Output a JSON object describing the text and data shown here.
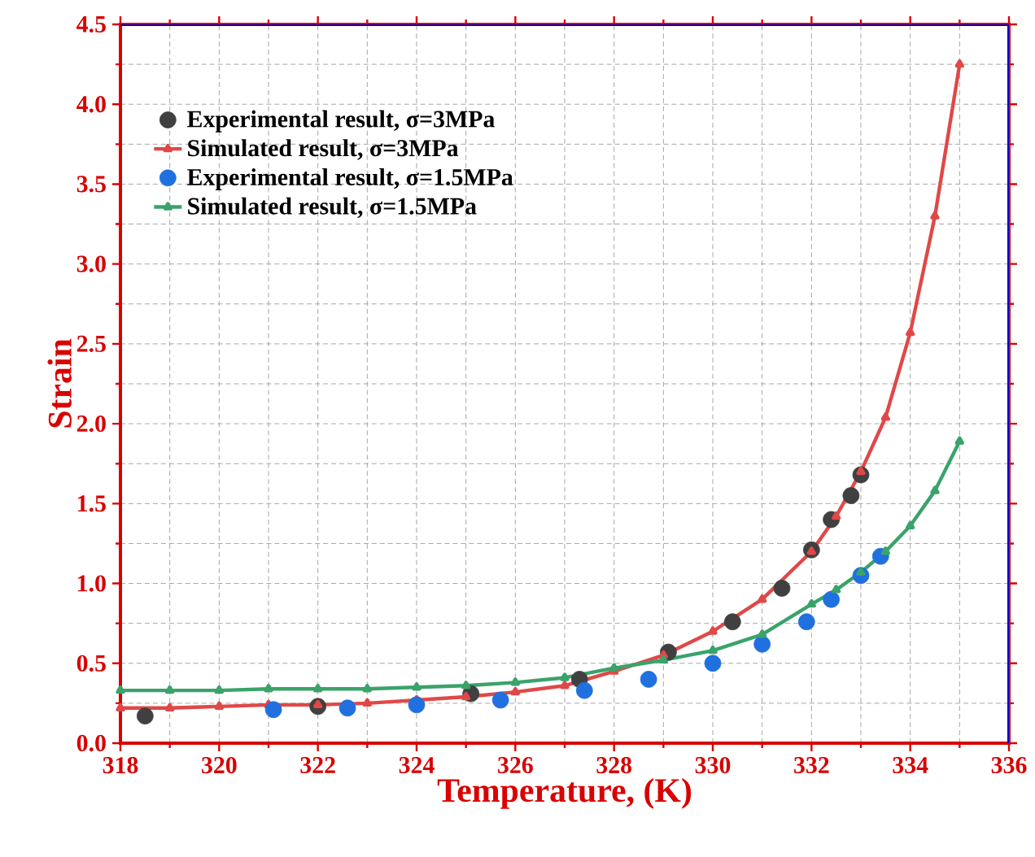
{
  "chart_data": {
    "type": "scatter",
    "xlabel": "Temperature, (K)",
    "ylabel": "Strain",
    "xlim": [
      318,
      336
    ],
    "ylim": [
      0,
      4.5
    ],
    "xticks": [
      318,
      320,
      322,
      324,
      326,
      328,
      330,
      332,
      334,
      336
    ],
    "yticks": [
      {
        "value": 0,
        "label": "0.0"
      },
      {
        "value": 0.5,
        "label": "0.5"
      },
      {
        "value": 1,
        "label": "1.0"
      },
      {
        "value": 1.5,
        "label": "1.5"
      },
      {
        "value": 2,
        "label": "2.0"
      },
      {
        "value": 2.5,
        "label": "2.5"
      },
      {
        "value": 3,
        "label": "3.0"
      },
      {
        "value": 3.5,
        "label": "3.5"
      },
      {
        "value": 4,
        "label": "4.0"
      },
      {
        "value": 4.5,
        "label": "4.5"
      }
    ],
    "grid": true,
    "legend": "top left",
    "series": [
      {
        "name": "Experimental result, σ=3MPa",
        "marker": "circle",
        "color": "#404040",
        "x": [
          318.5,
          322.0,
          325.1,
          327.3,
          329.1,
          330.4,
          331.4,
          332.0,
          332.4,
          332.8,
          333.0
        ],
        "values": [
          0.17,
          0.23,
          0.31,
          0.4,
          0.57,
          0.76,
          0.97,
          1.21,
          1.4,
          1.55,
          1.68
        ]
      },
      {
        "name": "Simulated result, σ=3MPa",
        "type": "line",
        "marker": "triangle",
        "color": "#e04848",
        "x": [
          318,
          319,
          320,
          321,
          322,
          323,
          324,
          325,
          326,
          327,
          328,
          329,
          330,
          331,
          332,
          332.5,
          333,
          333.5,
          334,
          334.5,
          335
        ],
        "values": [
          0.22,
          0.22,
          0.23,
          0.24,
          0.24,
          0.25,
          0.27,
          0.29,
          0.32,
          0.36,
          0.45,
          0.55,
          0.7,
          0.9,
          1.2,
          1.42,
          1.7,
          2.04,
          2.57,
          3.3,
          4.25
        ]
      },
      {
        "name": "Experimental result, σ=1.5MPa",
        "marker": "circle",
        "color": "#2070e0",
        "x": [
          321.1,
          322.6,
          324.0,
          325.7,
          327.4,
          328.7,
          330.0,
          331.0,
          331.9,
          332.4,
          333.0,
          333.4
        ],
        "values": [
          0.21,
          0.22,
          0.24,
          0.27,
          0.33,
          0.4,
          0.5,
          0.62,
          0.76,
          0.9,
          1.05,
          1.17
        ]
      },
      {
        "name": "Simulated result, σ=1.5MPa",
        "type": "line",
        "marker": "triangle",
        "color": "#3aa36a",
        "x": [
          318,
          319,
          320,
          321,
          322,
          323,
          324,
          325,
          326,
          327,
          328,
          329,
          330,
          331,
          332,
          332.5,
          333,
          333.5,
          334,
          334.5,
          335
        ],
        "values": [
          0.33,
          0.33,
          0.33,
          0.34,
          0.34,
          0.34,
          0.35,
          0.36,
          0.38,
          0.41,
          0.47,
          0.52,
          0.58,
          0.68,
          0.87,
          0.96,
          1.07,
          1.2,
          1.36,
          1.58,
          1.89
        ]
      }
    ]
  }
}
